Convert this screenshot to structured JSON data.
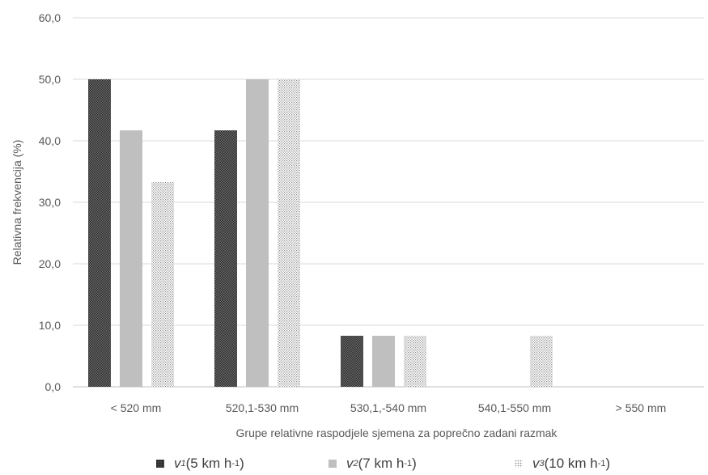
{
  "chart_data": {
    "type": "bar",
    "title": "",
    "xlabel": "Grupe relativne raspodjele sjemena za poprečno zadani razmak",
    "ylabel": "Relativna frekvencija (%)",
    "ylim": [
      0,
      60
    ],
    "ytick_values": [
      0,
      10,
      20,
      30,
      40,
      50,
      60
    ],
    "ytick_labels": [
      "0,0",
      "10,0",
      "20,0",
      "30,0",
      "40,0",
      "50,0",
      "60,0"
    ],
    "categories": [
      "< 520 mm",
      "520,1-530 mm",
      "530,1,-540 mm",
      "540,1-550 mm",
      "> 550 mm"
    ],
    "series": [
      {
        "name": "v1 (5 km h-1)",
        "values": [
          50.0,
          41.7,
          8.3,
          0,
          0
        ],
        "color": "#404040",
        "pattern": "dense-dots"
      },
      {
        "name": "v2 (7 km h-1)",
        "values": [
          41.7,
          50.0,
          8.3,
          0,
          0
        ],
        "color": "#bfbfbf",
        "pattern": "solid"
      },
      {
        "name": "v3 (10 km h-1)",
        "values": [
          33.3,
          50.0,
          8.3,
          8.3,
          0
        ],
        "color": "#a6a6a6",
        "pattern": "sparse-dots"
      }
    ],
    "grid": true,
    "legend_position": "bottom"
  },
  "legend": [
    {
      "var": "v",
      "sub": "1",
      "pre": " (5 km h",
      "sup": "-1",
      "post": ")"
    },
    {
      "var": "v",
      "sub": "2",
      "pre": " (7 km h",
      "sup": "-1",
      "post": ")"
    },
    {
      "var": "v",
      "sub": "3",
      "pre": " (10 km h",
      "sup": "-1",
      "post": ")"
    }
  ]
}
